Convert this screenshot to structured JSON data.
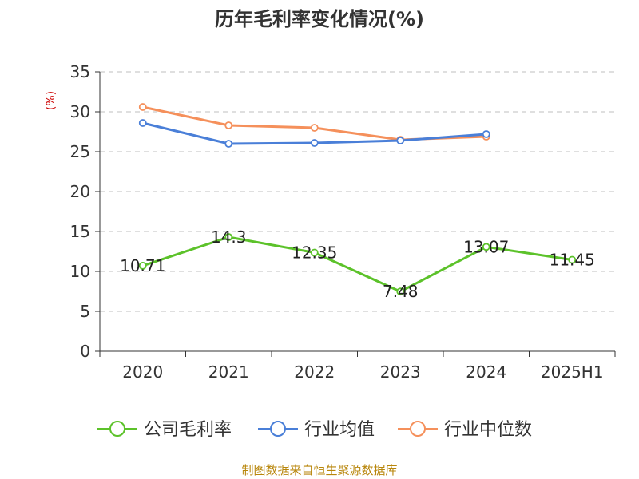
{
  "chart_data": {
    "type": "line",
    "title": "历年毛利率变化情况(%)",
    "ylabel": "(%)",
    "xlabel": "",
    "categories": [
      "2020",
      "2021",
      "2022",
      "2023",
      "2024",
      "2025H1"
    ],
    "ylim": [
      0,
      35
    ],
    "yticks": [
      "0",
      "5",
      "10",
      "15",
      "20",
      "25",
      "30",
      "35"
    ],
    "grid": true,
    "legend_position": "bottom",
    "series": [
      {
        "name": "公司毛利率",
        "color": "#5cc22a",
        "values": [
          10.71,
          14.3,
          12.35,
          7.48,
          13.07,
          11.45
        ],
        "labels": [
          "10.71",
          "14.3",
          "12.35",
          "7.48",
          "13.07",
          "11.45"
        ]
      },
      {
        "name": "行业均值",
        "color": "#4a7fd8",
        "values": [
          28.6,
          26.0,
          26.1,
          26.4,
          27.2,
          null
        ]
      },
      {
        "name": "行业中位数",
        "color": "#f5905b",
        "values": [
          30.6,
          28.3,
          28.0,
          26.5,
          26.9,
          null
        ]
      }
    ]
  },
  "source": "制图数据来自恒生聚源数据库"
}
